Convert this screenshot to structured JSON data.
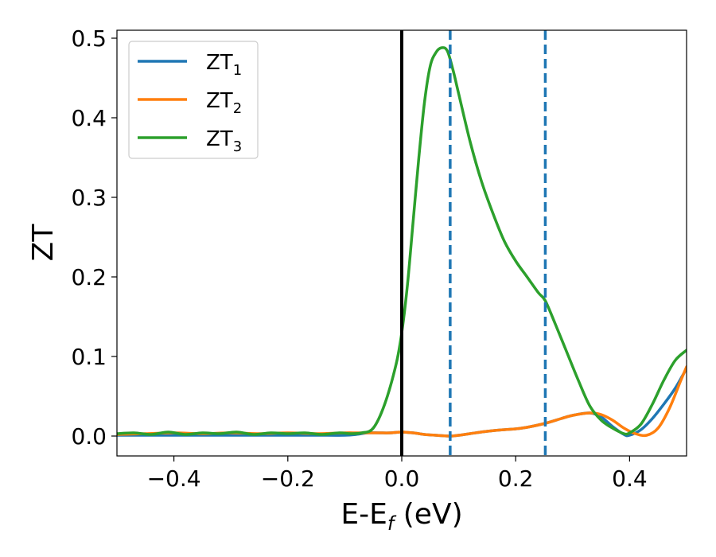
{
  "chart_data": {
    "type": "line",
    "xlabel": {
      "main": "E-E",
      "sub": "f",
      "suffix": " (eV)"
    },
    "ylabel": "ZT",
    "xlim": [
      -0.5,
      0.5
    ],
    "ylim": [
      -0.025,
      0.51
    ],
    "xticks": [
      {
        "value": -0.4,
        "label": "−0.4"
      },
      {
        "value": -0.2,
        "label": "−0.2"
      },
      {
        "value": 0.0,
        "label": "0.0"
      },
      {
        "value": 0.2,
        "label": "0.2"
      },
      {
        "value": 0.4,
        "label": "0.4"
      }
    ],
    "yticks": [
      {
        "value": 0.0,
        "label": "0.0"
      },
      {
        "value": 0.1,
        "label": "0.1"
      },
      {
        "value": 0.2,
        "label": "0.2"
      },
      {
        "value": 0.3,
        "label": "0.3"
      },
      {
        "value": 0.4,
        "label": "0.4"
      },
      {
        "value": 0.5,
        "label": "0.5"
      }
    ],
    "grid": false,
    "legend_position": "top-left",
    "reference_lines": [
      {
        "x": 0.0,
        "color": "#000000",
        "style": "solid"
      },
      {
        "x": 0.085,
        "color": "#1f77b4",
        "style": "dashed"
      },
      {
        "x": 0.252,
        "color": "#1f77b4",
        "style": "dashed"
      }
    ],
    "series": [
      {
        "name": "ZT",
        "sub": "1",
        "color": "#1f77b4",
        "x": [
          -0.5,
          -0.45,
          -0.4,
          -0.35,
          -0.3,
          -0.25,
          -0.2,
          -0.15,
          -0.1,
          -0.08,
          -0.06,
          -0.04,
          -0.02,
          0.0,
          0.02,
          0.04,
          0.06,
          0.085,
          0.1,
          0.12,
          0.15,
          0.18,
          0.2,
          0.22,
          0.252,
          0.28,
          0.3,
          0.33,
          0.35,
          0.37,
          0.39,
          0.4,
          0.42,
          0.44,
          0.46,
          0.48,
          0.5
        ],
        "y": [
          0.001,
          0.001,
          0.001,
          0.001,
          0.001,
          0.001,
          0.001,
          0.001,
          0.001,
          0.002,
          0.004,
          0.004,
          0.004,
          0.005,
          0.004,
          0.002,
          0.001,
          0.0,
          0.001,
          0.003,
          0.006,
          0.008,
          0.009,
          0.011,
          0.016,
          0.022,
          0.026,
          0.029,
          0.024,
          0.012,
          0.002,
          0.001,
          0.008,
          0.022,
          0.04,
          0.06,
          0.085
        ]
      },
      {
        "name": "ZT",
        "sub": "2",
        "color": "#ff7f0e",
        "x": [
          -0.5,
          -0.45,
          -0.4,
          -0.35,
          -0.3,
          -0.25,
          -0.2,
          -0.15,
          -0.1,
          -0.08,
          -0.06,
          -0.04,
          -0.02,
          0.0,
          0.02,
          0.04,
          0.06,
          0.085,
          0.1,
          0.12,
          0.15,
          0.18,
          0.2,
          0.22,
          0.252,
          0.28,
          0.3,
          0.33,
          0.35,
          0.37,
          0.39,
          0.41,
          0.43,
          0.45,
          0.47,
          0.49,
          0.5
        ],
        "y": [
          0.002,
          0.003,
          0.004,
          0.003,
          0.004,
          0.003,
          0.004,
          0.003,
          0.004,
          0.004,
          0.004,
          0.004,
          0.004,
          0.005,
          0.004,
          0.002,
          0.001,
          0.0,
          0.001,
          0.003,
          0.006,
          0.008,
          0.009,
          0.011,
          0.016,
          0.022,
          0.026,
          0.029,
          0.027,
          0.02,
          0.01,
          0.003,
          0.001,
          0.01,
          0.035,
          0.07,
          0.087
        ]
      },
      {
        "name": "ZT",
        "sub": "3",
        "color": "#2ca02c",
        "x": [
          -0.5,
          -0.47,
          -0.44,
          -0.41,
          -0.38,
          -0.35,
          -0.32,
          -0.29,
          -0.26,
          -0.23,
          -0.2,
          -0.17,
          -0.14,
          -0.11,
          -0.09,
          -0.07,
          -0.05,
          -0.03,
          -0.01,
          0.0,
          0.01,
          0.02,
          0.03,
          0.04,
          0.05,
          0.06,
          0.07,
          0.08,
          0.09,
          0.1,
          0.12,
          0.14,
          0.16,
          0.18,
          0.2,
          0.22,
          0.24,
          0.252,
          0.27,
          0.29,
          0.31,
          0.33,
          0.35,
          0.37,
          0.39,
          0.4,
          0.42,
          0.44,
          0.46,
          0.48,
          0.5
        ],
        "y": [
          0.003,
          0.004,
          0.002,
          0.005,
          0.002,
          0.004,
          0.003,
          0.005,
          0.002,
          0.004,
          0.003,
          0.004,
          0.002,
          0.004,
          0.003,
          0.004,
          0.01,
          0.04,
          0.09,
          0.13,
          0.19,
          0.27,
          0.35,
          0.42,
          0.465,
          0.482,
          0.488,
          0.484,
          0.46,
          0.43,
          0.37,
          0.32,
          0.28,
          0.245,
          0.22,
          0.2,
          0.18,
          0.17,
          0.14,
          0.105,
          0.07,
          0.038,
          0.02,
          0.01,
          0.003,
          0.004,
          0.015,
          0.04,
          0.07,
          0.095,
          0.108
        ]
      }
    ]
  }
}
